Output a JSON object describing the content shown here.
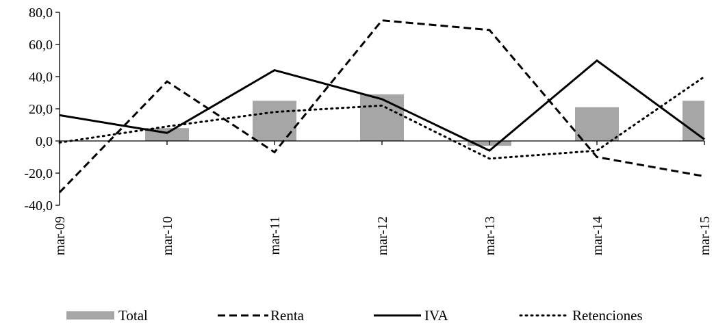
{
  "chart_data": {
    "type": "bar",
    "title": "",
    "xlabel": "",
    "ylabel": "",
    "ylim": [
      -40,
      80
    ],
    "y_ticks": [
      80,
      60,
      40,
      20,
      0,
      -20,
      -40
    ],
    "y_tick_labels": [
      "80,0",
      "60,0",
      "40,0",
      "20,0",
      "0,0",
      "-20,0",
      "-40,0"
    ],
    "categories": [
      "mar-09",
      "mar-10",
      "mar-11",
      "mar-12",
      "mar-13",
      "mar-14",
      "mar-15"
    ],
    "grid": false,
    "legend_position": "bottom",
    "series": [
      {
        "name": "Total",
        "kind": "bar",
        "style": "solid-fill",
        "color": "#a6a6a6",
        "values": [
          0,
          8,
          25,
          29,
          -3,
          21,
          25
        ]
      },
      {
        "name": "Renta",
        "kind": "line",
        "style": "dashed",
        "color": "#000000",
        "values": [
          -32,
          37,
          -7,
          75,
          69,
          -10,
          -22
        ]
      },
      {
        "name": "IVA",
        "kind": "line",
        "style": "solid",
        "color": "#000000",
        "values": [
          16,
          5,
          44,
          26,
          -6,
          50,
          1
        ]
      },
      {
        "name": "Retenciones",
        "kind": "line",
        "style": "dotted",
        "color": "#000000",
        "values": [
          -1,
          9,
          18,
          22,
          -11,
          -6,
          40
        ]
      }
    ]
  }
}
